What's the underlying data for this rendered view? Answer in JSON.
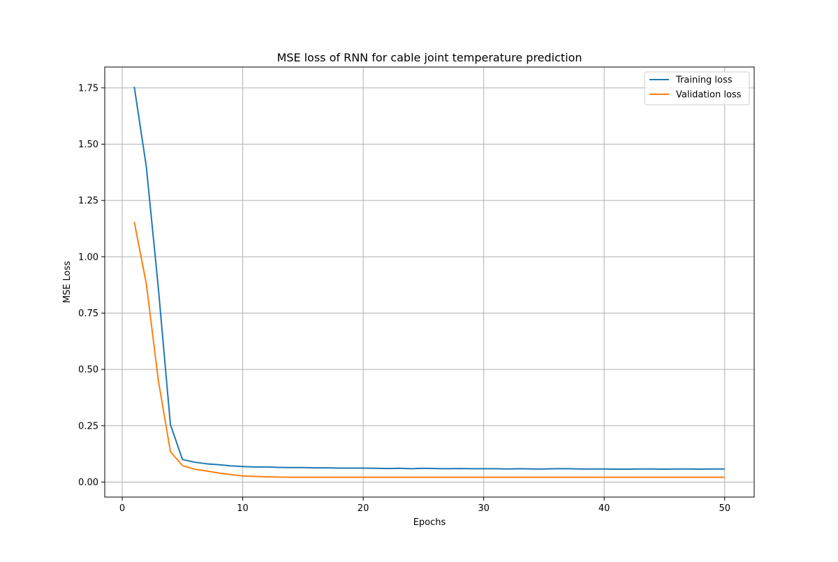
{
  "chart_data": {
    "type": "line",
    "title": "MSE loss of RNN for cable joint temperature prediction",
    "xlabel": "Epochs",
    "ylabel": "MSE Loss",
    "xlim": [
      -1.45,
      52.45
    ],
    "ylim": [
      -0.0668,
      1.8425
    ],
    "xticks": [
      0,
      10,
      20,
      30,
      40,
      50
    ],
    "yticks": [
      0.0,
      0.25,
      0.5,
      0.75,
      1.0,
      1.25,
      1.5,
      1.75
    ],
    "xtick_labels": [
      "0",
      "10",
      "20",
      "30",
      "40",
      "50"
    ],
    "ytick_labels": [
      "0.00",
      "0.25",
      "0.50",
      "0.75",
      "1.00",
      "1.25",
      "1.50",
      "1.75"
    ],
    "grid": true,
    "legend_position": "top-right",
    "x": [
      1,
      2,
      3,
      4,
      5,
      6,
      7,
      8,
      9,
      10,
      11,
      12,
      13,
      14,
      15,
      16,
      17,
      18,
      19,
      20,
      21,
      22,
      23,
      24,
      25,
      26,
      27,
      28,
      29,
      30,
      31,
      32,
      33,
      34,
      35,
      36,
      37,
      38,
      39,
      40,
      41,
      42,
      43,
      44,
      45,
      46,
      47,
      48,
      49,
      50
    ],
    "series": [
      {
        "name": "Training loss",
        "color": "#1f77b4",
        "values": [
          1.755,
          1.4,
          0.86,
          0.255,
          0.1,
          0.088,
          0.081,
          0.077,
          0.072,
          0.069,
          0.067,
          0.067,
          0.065,
          0.064,
          0.064,
          0.063,
          0.063,
          0.062,
          0.062,
          0.062,
          0.061,
          0.06,
          0.061,
          0.059,
          0.061,
          0.06,
          0.059,
          0.06,
          0.059,
          0.059,
          0.059,
          0.058,
          0.059,
          0.058,
          0.058,
          0.059,
          0.059,
          0.058,
          0.058,
          0.058,
          0.057,
          0.057,
          0.058,
          0.058,
          0.057,
          0.058,
          0.058,
          0.057,
          0.058,
          0.058
        ]
      },
      {
        "name": "Validation loss",
        "color": "#ff7f0e",
        "values": [
          1.155,
          0.88,
          0.45,
          0.135,
          0.073,
          0.057,
          0.049,
          0.04,
          0.033,
          0.027,
          0.025,
          0.023,
          0.022,
          0.021,
          0.021,
          0.021,
          0.021,
          0.021,
          0.021,
          0.021,
          0.021,
          0.021,
          0.021,
          0.021,
          0.021,
          0.021,
          0.021,
          0.021,
          0.021,
          0.021,
          0.021,
          0.021,
          0.021,
          0.021,
          0.021,
          0.021,
          0.021,
          0.021,
          0.021,
          0.021,
          0.021,
          0.021,
          0.021,
          0.021,
          0.021,
          0.021,
          0.021,
          0.021,
          0.021,
          0.021
        ]
      }
    ]
  }
}
